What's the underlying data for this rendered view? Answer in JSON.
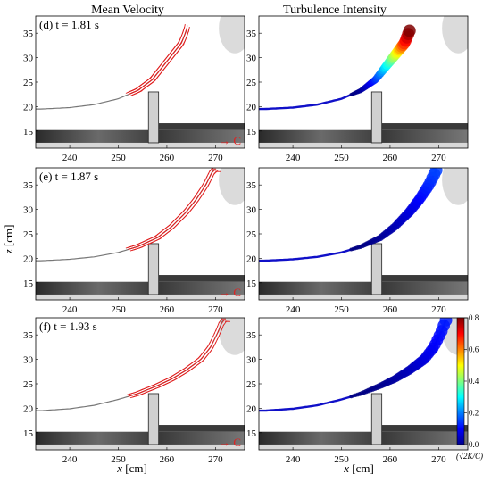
{
  "titles": {
    "left": "Mean Velocity",
    "right": "Turbulence Intensity"
  },
  "axes": {
    "xlabel": {
      "var": "x",
      "unit": "[cm]"
    },
    "ylabel": {
      "var": "z",
      "unit": "[cm]"
    },
    "xticks": [
      240,
      250,
      260,
      270
    ],
    "yticks": [
      15,
      20,
      25,
      30,
      35
    ],
    "xlim": [
      233,
      276
    ],
    "ylim": [
      11.5,
      38.5
    ]
  },
  "colorbar": {
    "ticks": [
      0.0,
      0.2,
      0.4,
      0.6,
      0.8
    ],
    "tick_labels": [
      "0.0",
      "0.2",
      "0.4",
      "0.6",
      "0.8"
    ],
    "label": "(√2K/C)",
    "range": [
      0,
      0.8
    ],
    "colormap": "jet"
  },
  "colors": {
    "velocity": "#e02020",
    "frame": "#000000",
    "structure": "#d0d0d0"
  },
  "legend_arrow_label": "→ C",
  "chart_data": [
    {
      "type": "scatter",
      "label": "(d) t = 1.81 s",
      "quantity": "mean velocity",
      "free_surface": {
        "x": [
          234,
          240,
          245,
          250,
          254,
          257,
          259,
          261,
          263,
          264,
          264.5,
          264
        ],
        "z": [
          19.5,
          19.8,
          20.4,
          21.6,
          23.3,
          25.5,
          28,
          30.5,
          33,
          35.5,
          37.5,
          38.5
        ]
      }
    },
    {
      "type": "scatter",
      "label": "",
      "quantity": "turbulence intensity",
      "free_surface": {
        "x": [
          234,
          240,
          245,
          250,
          254,
          257,
          259,
          261,
          263,
          264,
          264.5,
          264
        ],
        "z": [
          19.5,
          19.8,
          20.4,
          21.6,
          23.3,
          25.5,
          28,
          30.5,
          33,
          35.5,
          37.5,
          38.5
        ]
      },
      "peak_intensity": 0.8
    },
    {
      "type": "scatter",
      "label": "(e) t = 1.87 s",
      "quantity": "mean velocity",
      "free_surface": {
        "x": [
          234,
          240,
          245,
          250,
          254,
          258,
          261,
          264,
          266,
          268,
          269.5
        ],
        "z": [
          19.5,
          19.8,
          20.3,
          21.2,
          22.4,
          24.2,
          26.5,
          29.5,
          32,
          35,
          38
        ]
      }
    },
    {
      "type": "scatter",
      "label": "",
      "quantity": "turbulence intensity",
      "free_surface": {
        "x": [
          234,
          240,
          245,
          250,
          254,
          258,
          261,
          264,
          266,
          268,
          269.5
        ],
        "z": [
          19.5,
          19.8,
          20.3,
          21.2,
          22.4,
          24.2,
          26.5,
          29.5,
          32,
          35,
          38
        ]
      },
      "peak_intensity": 0.15
    },
    {
      "type": "scatter",
      "label": "(f) t = 1.93 s",
      "quantity": "mean velocity",
      "free_surface": {
        "x": [
          234,
          240,
          245,
          250,
          254,
          258,
          261,
          264,
          267,
          269,
          270.5,
          271.5
        ],
        "z": [
          19.5,
          19.9,
          20.6,
          21.8,
          23.0,
          24.6,
          26.0,
          27.8,
          30.0,
          32.5,
          35.5,
          38
        ]
      }
    },
    {
      "type": "scatter",
      "label": "",
      "quantity": "turbulence intensity",
      "free_surface": {
        "x": [
          234,
          240,
          245,
          250,
          254,
          258,
          261,
          264,
          267,
          269,
          270.5,
          271.5
        ],
        "z": [
          19.5,
          19.9,
          20.6,
          21.8,
          23.0,
          24.6,
          26.0,
          27.8,
          30.0,
          32.5,
          35.5,
          38
        ]
      },
      "peak_intensity": 0.12
    }
  ]
}
